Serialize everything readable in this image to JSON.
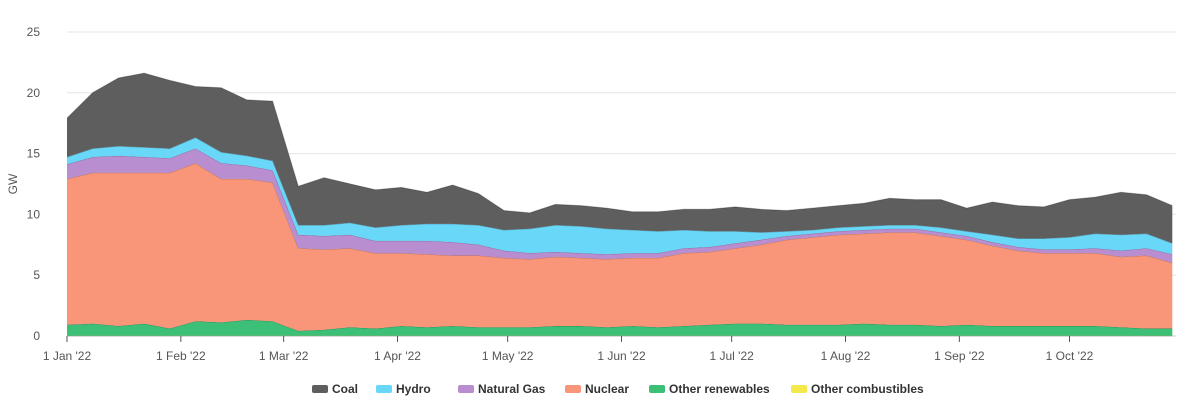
{
  "chart_data": {
    "type": "area",
    "stacked": true,
    "title": "",
    "xlabel": "",
    "ylabel": "GW",
    "ylim": [
      0,
      25
    ],
    "yticks": [
      0,
      5,
      10,
      15,
      20,
      25
    ],
    "xlim": [
      "2022-01-01",
      "2022-10-30"
    ],
    "xticks": [
      {
        "date": "2022-01-01",
        "label": "1 Jan '22"
      },
      {
        "date": "2022-02-01",
        "label": "1 Feb '22"
      },
      {
        "date": "2022-03-01",
        "label": "1 Mar '22"
      },
      {
        "date": "2022-04-01",
        "label": "1 Apr '22"
      },
      {
        "date": "2022-05-01",
        "label": "1 May '22"
      },
      {
        "date": "2022-06-01",
        "label": "1 Jun '22"
      },
      {
        "date": "2022-07-01",
        "label": "1 Jul '22"
      },
      {
        "date": "2022-08-01",
        "label": "1 Aug '22"
      },
      {
        "date": "2022-09-01",
        "label": "1 Sep '22"
      },
      {
        "date": "2022-10-01",
        "label": "1 Oct '22"
      }
    ],
    "grid": true,
    "legend_position": "bottom",
    "x": [
      "2022-01-01",
      "2022-01-08",
      "2022-01-15",
      "2022-01-22",
      "2022-01-29",
      "2022-02-05",
      "2022-02-12",
      "2022-02-19",
      "2022-02-26",
      "2022-03-05",
      "2022-03-12",
      "2022-03-19",
      "2022-03-26",
      "2022-04-02",
      "2022-04-09",
      "2022-04-16",
      "2022-04-23",
      "2022-04-30",
      "2022-05-07",
      "2022-05-14",
      "2022-05-21",
      "2022-05-28",
      "2022-06-04",
      "2022-06-11",
      "2022-06-18",
      "2022-06-25",
      "2022-07-02",
      "2022-07-09",
      "2022-07-16",
      "2022-07-23",
      "2022-07-30",
      "2022-08-06",
      "2022-08-13",
      "2022-08-20",
      "2022-08-27",
      "2022-09-03",
      "2022-09-10",
      "2022-09-17",
      "2022-09-24",
      "2022-10-01",
      "2022-10-08",
      "2022-10-15",
      "2022-10-22",
      "2022-10-29"
    ],
    "series": [
      {
        "name": "Other combustibles",
        "color": "#f5e84a",
        "values": [
          0.02,
          0.02,
          0.02,
          0.02,
          0.02,
          0.02,
          0.02,
          0.02,
          0.02,
          0.02,
          0.02,
          0.02,
          0.02,
          0.02,
          0.02,
          0.02,
          0.02,
          0.02,
          0.02,
          0.02,
          0.02,
          0.02,
          0.02,
          0.02,
          0.02,
          0.02,
          0.02,
          0.02,
          0.02,
          0.02,
          0.02,
          0.02,
          0.02,
          0.02,
          0.02,
          0.02,
          0.02,
          0.02,
          0.02,
          0.02,
          0.02,
          0.02,
          0.02,
          0.02
        ]
      },
      {
        "name": "Other renewables",
        "color": "#3cc078",
        "values": [
          0.9,
          1.0,
          0.8,
          1.0,
          0.6,
          1.2,
          1.1,
          1.3,
          1.2,
          0.4,
          0.5,
          0.7,
          0.6,
          0.8,
          0.7,
          0.8,
          0.7,
          0.7,
          0.7,
          0.8,
          0.8,
          0.7,
          0.8,
          0.7,
          0.8,
          0.9,
          1.0,
          1.0,
          0.9,
          0.9,
          0.9,
          1.0,
          0.9,
          0.9,
          0.8,
          0.9,
          0.8,
          0.8,
          0.8,
          0.8,
          0.8,
          0.7,
          0.6,
          0.6
        ]
      },
      {
        "name": "Nuclear",
        "color": "#f99679",
        "values": [
          12.0,
          12.4,
          12.6,
          12.4,
          12.8,
          13.0,
          11.8,
          11.6,
          11.4,
          6.8,
          6.6,
          6.5,
          6.2,
          6.0,
          6.0,
          5.8,
          5.9,
          5.7,
          5.6,
          5.7,
          5.6,
          5.6,
          5.6,
          5.7,
          6.0,
          6.0,
          6.2,
          6.5,
          7.0,
          7.2,
          7.4,
          7.4,
          7.6,
          7.6,
          7.4,
          7.0,
          6.6,
          6.2,
          6.0,
          6.0,
          6.0,
          5.8,
          6.0,
          5.4
        ]
      },
      {
        "name": "Natural Gas",
        "color": "#b98ed1",
        "values": [
          1.2,
          1.3,
          1.4,
          1.3,
          1.2,
          1.2,
          1.3,
          1.1,
          1.0,
          1.1,
          1.1,
          1.1,
          1.0,
          1.0,
          1.1,
          1.1,
          0.9,
          0.6,
          0.5,
          0.4,
          0.4,
          0.4,
          0.4,
          0.4,
          0.4,
          0.4,
          0.4,
          0.4,
          0.3,
          0.3,
          0.3,
          0.3,
          0.3,
          0.3,
          0.3,
          0.3,
          0.3,
          0.3,
          0.3,
          0.3,
          0.4,
          0.5,
          0.6,
          0.7
        ]
      },
      {
        "name": "Hydro",
        "color": "#68d7f8",
        "values": [
          0.6,
          0.7,
          0.8,
          0.8,
          0.8,
          0.9,
          0.9,
          0.8,
          0.8,
          0.8,
          0.9,
          1.0,
          1.1,
          1.3,
          1.4,
          1.5,
          1.6,
          1.7,
          2.0,
          2.2,
          2.2,
          2.1,
          1.9,
          1.8,
          1.5,
          1.3,
          1.0,
          0.6,
          0.4,
          0.3,
          0.3,
          0.3,
          0.3,
          0.3,
          0.4,
          0.4,
          0.6,
          0.7,
          0.9,
          1.0,
          1.2,
          1.3,
          1.2,
          0.9
        ]
      },
      {
        "name": "Coal",
        "color": "#5e5e5e",
        "values": [
          3.2,
          4.6,
          5.6,
          6.1,
          5.6,
          4.2,
          5.3,
          4.6,
          4.9,
          3.2,
          3.9,
          3.2,
          3.1,
          3.1,
          2.6,
          3.2,
          2.6,
          1.6,
          1.3,
          1.7,
          1.7,
          1.7,
          1.5,
          1.6,
          1.7,
          1.8,
          2.0,
          1.9,
          1.7,
          1.8,
          1.8,
          1.9,
          2.2,
          2.1,
          2.3,
          1.9,
          2.7,
          2.7,
          2.6,
          3.1,
          3.0,
          3.5,
          3.2,
          3.1
        ]
      }
    ],
    "legend_order": [
      "Coal",
      "Hydro",
      "Natural Gas",
      "Nuclear",
      "Other renewables",
      "Other combustibles"
    ]
  }
}
